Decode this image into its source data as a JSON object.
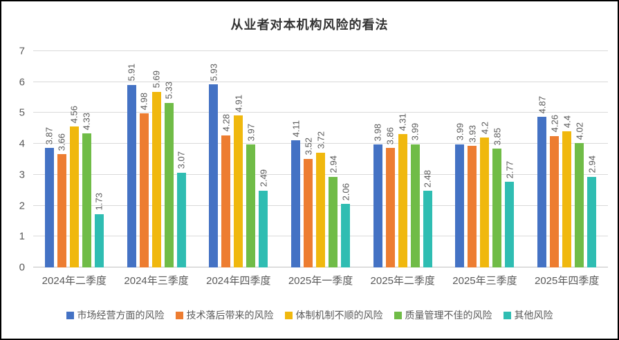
{
  "chart_data": {
    "type": "bar",
    "title": "从业者对本机构风险的看法",
    "categories": [
      "2024年二季度",
      "2024年三季度",
      "2024年四季度",
      "2025年一季度",
      "2025年二季度",
      "2025年三季度",
      "2025年四季度"
    ],
    "series": [
      {
        "name": "市场经营方面的风险",
        "color": "#4472C4",
        "values": [
          3.87,
          5.91,
          5.93,
          4.11,
          3.98,
          3.99,
          4.87
        ]
      },
      {
        "name": "技术落后带来的风险",
        "color": "#ED7D31",
        "values": [
          3.66,
          4.98,
          4.28,
          3.52,
          3.86,
          3.93,
          4.26
        ]
      },
      {
        "name": "体制机制不顺的风险",
        "color": "#F0B80E",
        "values": [
          4.56,
          5.69,
          4.91,
          3.72,
          4.31,
          4.2,
          4.4
        ]
      },
      {
        "name": "质量管理不佳的风险",
        "color": "#70BC47",
        "values": [
          4.33,
          5.33,
          3.97,
          2.94,
          3.99,
          3.85,
          4.02
        ]
      },
      {
        "name": "其他风险",
        "color": "#2FBDB2",
        "values": [
          1.73,
          3.07,
          2.49,
          2.06,
          2.48,
          2.77,
          2.94
        ]
      }
    ],
    "ylim": [
      0,
      7
    ],
    "yticks": [
      0,
      1,
      2,
      3,
      4,
      5,
      6,
      7
    ],
    "grid": "horizontal",
    "legend_position": "bottom",
    "data_labels": "rotated-vertical",
    "colors": {
      "gridline": "#D9D9D9",
      "axis_line": "#BFBFBF",
      "axis_text": "#595959",
      "title_text": "#333333",
      "background": "#FFFFFF",
      "border": "#000000"
    }
  }
}
